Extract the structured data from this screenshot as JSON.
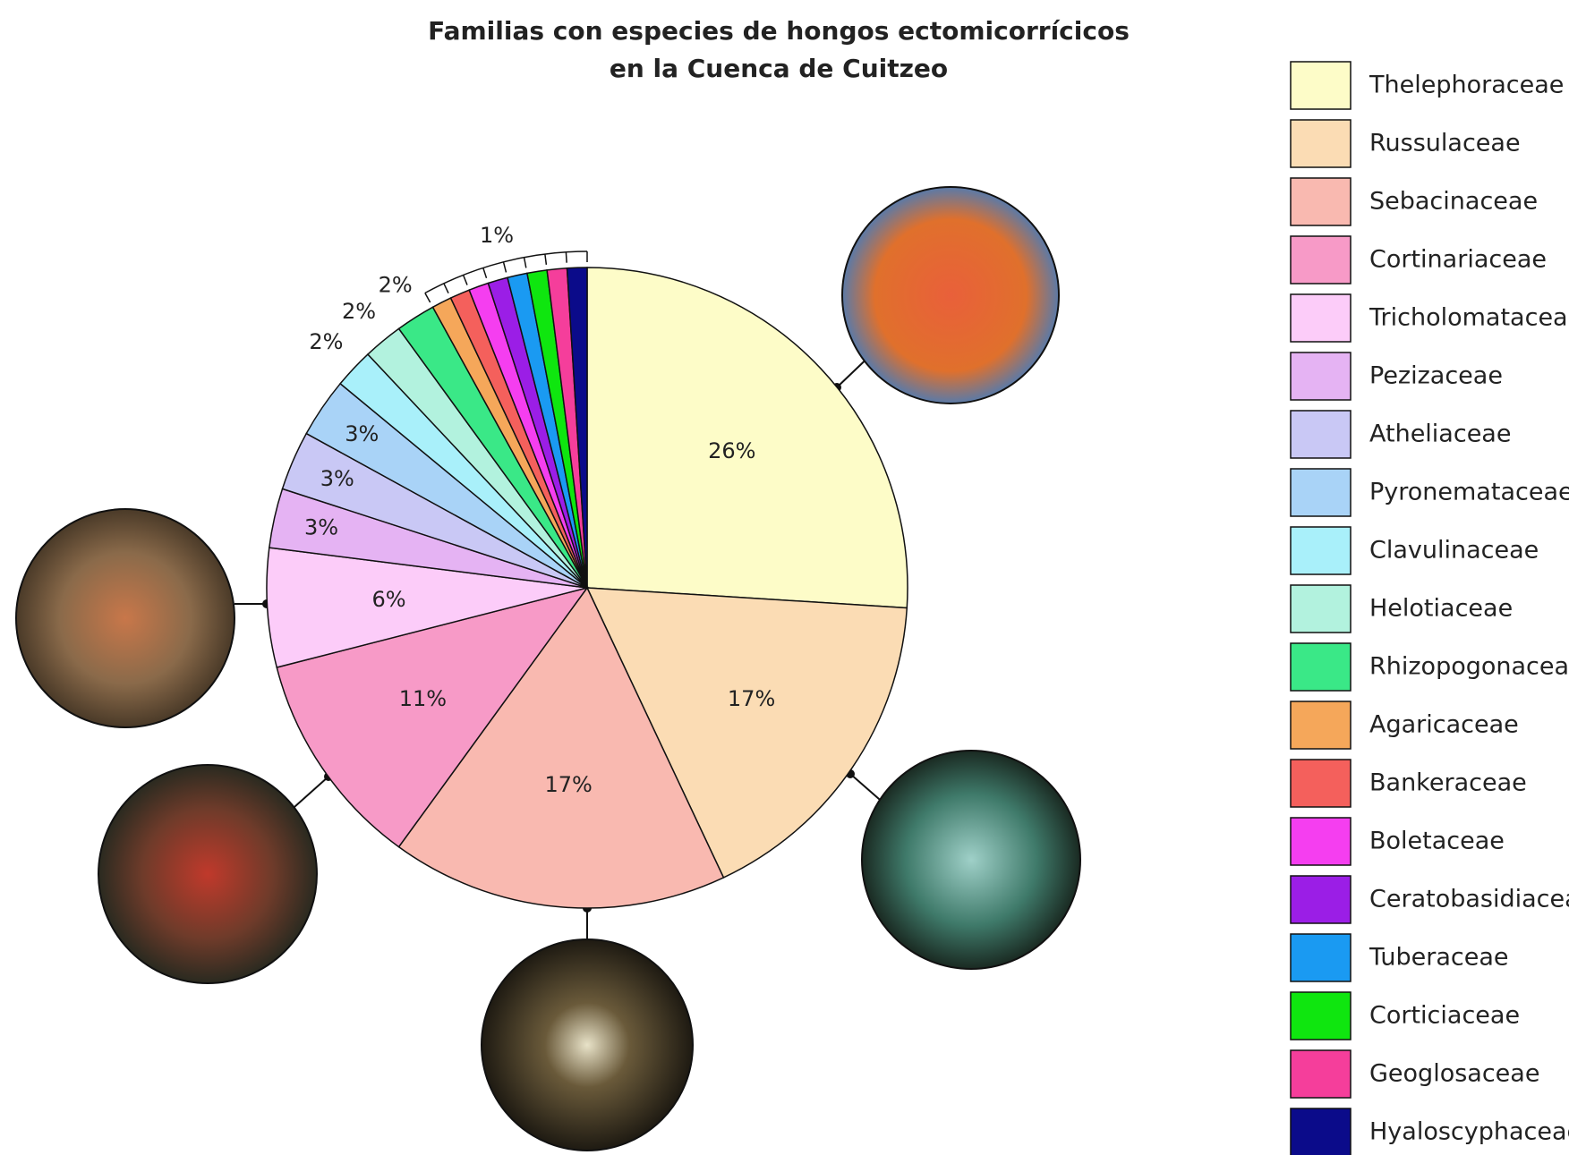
{
  "chart_data": {
    "type": "pie",
    "title": "Familias con especies de hongos ectomicorrícicos",
    "subtitle": "en la Cuenca de Cuitzeo",
    "categories": [
      "Thelephoraceae",
      "Russulaceae",
      "Sebacinaceae",
      "Cortinariaceae",
      "Tricholomataceae",
      "Pezizaceae",
      "Atheliaceae",
      "Pyronemataceae",
      "Clavulinaceae",
      "Helotiaceae",
      "Rhizopogonaceae",
      "Agaricaceae",
      "Bankeraceae",
      "Boletaceae",
      "Ceratobasidiaceae",
      "Tuberaceae",
      "Corticiaceae",
      "Geoglosaceae",
      "Hyaloscyphaceae"
    ],
    "values": [
      26,
      17,
      17,
      11,
      6,
      3,
      3,
      3,
      2,
      2,
      2,
      1,
      1,
      1,
      1,
      1,
      1,
      1,
      1
    ],
    "value_labels": [
      "26%",
      "17%",
      "17%",
      "11%",
      "6%",
      "3%",
      "3%",
      "3%",
      "2%",
      "2%",
      "2%",
      "1%",
      null,
      null,
      null,
      null,
      null,
      null,
      null
    ],
    "colors": [
      "#fdfcc8",
      "#fbdcb4",
      "#f9b9b0",
      "#f79ac7",
      "#fcccf9",
      "#e5b3f3",
      "#c9c8f5",
      "#a9d3f7",
      "#a9f0fa",
      "#b2f2de",
      "#3ae887",
      "#f5a75a",
      "#f4605c",
      "#f53ef0",
      "#9b1ee6",
      "#1a9af2",
      "#0fe60f",
      "#f53e9b",
      "#0b0b8a"
    ],
    "legend": "right"
  }
}
